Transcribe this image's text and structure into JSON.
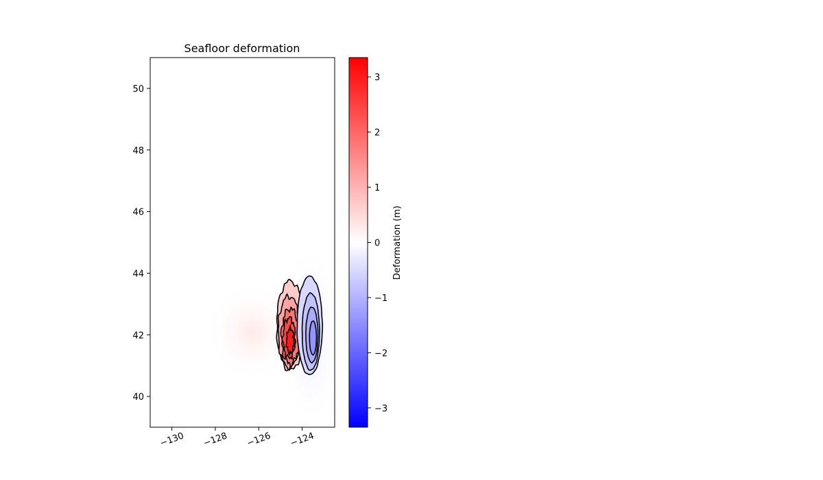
{
  "chart_data": {
    "type": "heatmap",
    "title": "Seafloor deformation",
    "xlabel": "",
    "ylabel": "",
    "xlim": [
      -131,
      -122.5
    ],
    "ylim": [
      39,
      51
    ],
    "x_ticks": [
      -130,
      -128,
      -126,
      -124
    ],
    "x_tick_labels": [
      "−130",
      "−128",
      "−126",
      "−124"
    ],
    "y_ticks": [
      40,
      42,
      44,
      46,
      48,
      50
    ],
    "y_tick_labels": [
      "40",
      "42",
      "44",
      "46",
      "48",
      "50"
    ],
    "grid": false,
    "colormap": "bwr",
    "colors": {
      "negative": "#0000ff",
      "zero": "#ffffff",
      "positive": "#ff0000",
      "contour": "#000000"
    },
    "colorbar": {
      "label": "Deformation (m)",
      "range": [
        -3.35,
        3.35
      ],
      "ticks": [
        3,
        2,
        1,
        0,
        -1,
        -2,
        -3
      ],
      "tick_labels": [
        "3",
        "2",
        "1",
        "0",
        "−1",
        "−2",
        "−3"
      ]
    },
    "features": [
      {
        "name": "uplift",
        "center_lon": -124.6,
        "center_lat": 42.2,
        "lon_range": [
          -125.2,
          -124.0
        ],
        "lat_range": [
          40.9,
          43.8
        ],
        "peak_value": 3.3
      },
      {
        "name": "subsidence",
        "center_lon": -123.7,
        "center_lat": 42.0,
        "lon_range": [
          -124.0,
          -122.9
        ],
        "lat_range": [
          40.8,
          43.9
        ],
        "peak_value": -1.6
      }
    ],
    "contour_levels_uplift": [
      0.4,
      0.9,
      1.5,
      2.1,
      2.7
    ],
    "contour_levels_subsidence": [
      -0.3,
      -0.6,
      -0.9,
      -1.2
    ]
  }
}
